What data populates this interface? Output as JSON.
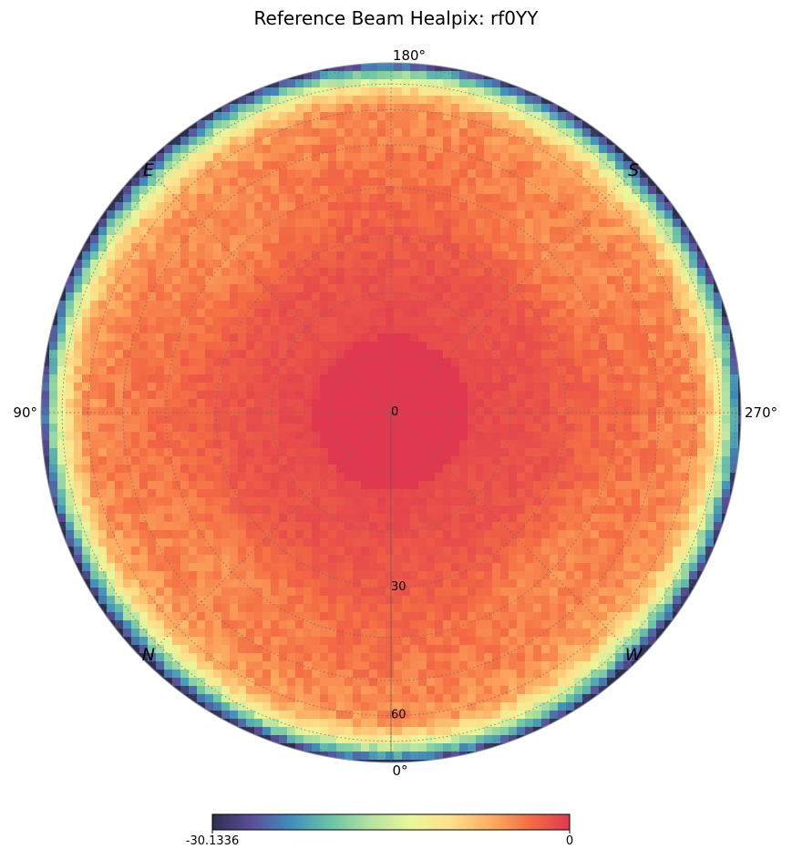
{
  "title": "Reference Beam Healpix: rf0YY",
  "chart_data": {
    "type": "heatmap",
    "projection": "orthographic-polar",
    "title": "Reference Beam Healpix: rf0YY",
    "azimuth_labels": [
      {
        "text": "180°",
        "az": 180
      },
      {
        "text": "90°",
        "az": 90
      },
      {
        "text": "270°",
        "az": 270
      },
      {
        "text": "0°",
        "az": 0
      }
    ],
    "cardinal_labels": [
      {
        "text": "E",
        "az": 135
      },
      {
        "text": "S",
        "az": 225
      },
      {
        "text": "N",
        "az": 45
      },
      {
        "text": "W",
        "az": 315
      }
    ],
    "zenith_angle_labels": [
      "0",
      "30",
      "60"
    ],
    "zenith_angle_ticks": [
      0,
      30,
      60
    ],
    "colorbar": {
      "min": -30.1336,
      "max": 0,
      "min_label": "-30.1336",
      "max_label": "0",
      "colormap": "Spectral_r",
      "orientation": "horizontal"
    },
    "grid": true,
    "grid_zenith_step_deg": 10,
    "grid_azimuth_step_deg": 45,
    "beam_model": {
      "peak_value": 0,
      "horizon_value": -30.1336,
      "pattern": "cross-shaped main lobe along 0-180 and 90-270 axes, strong fall-off near horizon"
    }
  },
  "colors": {
    "spectral": [
      "#2b2f4e",
      "#5b4e9a",
      "#3f8fbd",
      "#6cc5a5",
      "#b5e3a1",
      "#eaf69b",
      "#fee08b",
      "#fdae61",
      "#f46d43",
      "#e0394f"
    ]
  }
}
